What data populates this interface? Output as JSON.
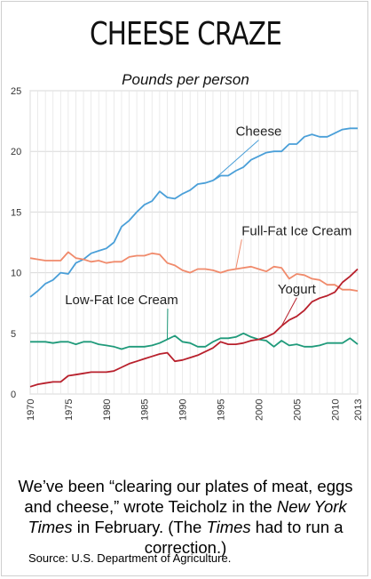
{
  "title": "CHEESE CRAZE",
  "subtitle": "Pounds per person",
  "caption": {
    "p1": "We’ve been “clearing our plates of meat, eggs and cheese,” wrote Teicholz in the ",
    "p2": "New York Times",
    "p3": " in February. (The ",
    "p4": "Times",
    "p5": " had to run a correction.)"
  },
  "source": "Source: U.S. Department of Agriculture.",
  "chart_data": {
    "type": "line",
    "xlim": [
      1970,
      2013
    ],
    "ylim": [
      0,
      25
    ],
    "yticks": [
      0,
      5,
      10,
      15,
      20,
      25
    ],
    "xticks": [
      1970,
      1975,
      1980,
      1985,
      1990,
      1995,
      2000,
      2005,
      2010,
      2013
    ],
    "grid": true,
    "x": [
      1970,
      1971,
      1972,
      1973,
      1974,
      1975,
      1976,
      1977,
      1978,
      1979,
      1980,
      1981,
      1982,
      1983,
      1984,
      1985,
      1986,
      1987,
      1988,
      1989,
      1990,
      1991,
      1992,
      1993,
      1994,
      1995,
      1996,
      1997,
      1998,
      1999,
      2000,
      2001,
      2002,
      2003,
      2004,
      2005,
      2006,
      2007,
      2008,
      2009,
      2010,
      2011,
      2012,
      2013
    ],
    "series": [
      {
        "name": "Cheese",
        "color": "#4a9fd8",
        "values": [
          8.0,
          8.5,
          9.1,
          9.4,
          10.0,
          9.9,
          10.8,
          11.1,
          11.6,
          11.8,
          12.0,
          12.5,
          13.8,
          14.3,
          15.0,
          15.6,
          15.9,
          16.7,
          16.2,
          16.1,
          16.5,
          16.8,
          17.3,
          17.4,
          17.6,
          18.0,
          18.0,
          18.4,
          18.7,
          19.3,
          19.6,
          19.9,
          20.0,
          20.0,
          20.6,
          20.6,
          21.2,
          21.4,
          21.2,
          21.2,
          21.5,
          21.8,
          21.9,
          21.9
        ],
        "label_pos": [
          2000,
          21.3
        ]
      },
      {
        "name": "Full-Fat Ice Cream",
        "color": "#f08a6b",
        "values": [
          11.2,
          11.1,
          11.0,
          11.0,
          11.0,
          11.7,
          11.2,
          11.1,
          10.9,
          11.0,
          10.8,
          10.9,
          10.9,
          11.3,
          11.4,
          11.4,
          11.6,
          11.5,
          10.8,
          10.6,
          10.2,
          10.0,
          10.3,
          10.3,
          10.2,
          10.0,
          10.2,
          10.3,
          10.4,
          10.5,
          10.3,
          10.1,
          10.5,
          10.4,
          9.5,
          9.9,
          9.8,
          9.5,
          9.4,
          9.0,
          9.0,
          8.6,
          8.6,
          8.5
        ],
        "label_pos": [
          2005,
          13.1
        ]
      },
      {
        "name": "Low-Fat Ice Cream",
        "color": "#1f9a7a",
        "values": [
          4.3,
          4.3,
          4.3,
          4.2,
          4.3,
          4.3,
          4.1,
          4.3,
          4.3,
          4.1,
          4.0,
          3.9,
          3.7,
          3.9,
          3.9,
          3.9,
          4.0,
          4.2,
          4.5,
          4.8,
          4.3,
          4.2,
          3.9,
          3.9,
          4.3,
          4.6,
          4.6,
          4.7,
          5.0,
          4.7,
          4.5,
          4.4,
          3.9,
          4.4,
          4.0,
          4.1,
          3.9,
          3.9,
          4.0,
          4.2,
          4.2,
          4.2,
          4.6,
          4.1
        ],
        "label_pos": [
          1982,
          7.4
        ]
      },
      {
        "name": "Yogurt",
        "color": "#b8202c",
        "values": [
          0.6,
          0.8,
          0.9,
          1.0,
          1.0,
          1.5,
          1.6,
          1.7,
          1.8,
          1.8,
          1.8,
          1.9,
          2.2,
          2.5,
          2.7,
          2.9,
          3.1,
          3.3,
          3.4,
          2.7,
          2.8,
          3.0,
          3.2,
          3.5,
          3.8,
          4.3,
          4.1,
          4.1,
          4.2,
          4.4,
          4.5,
          4.7,
          5.0,
          5.6,
          6.1,
          6.4,
          6.9,
          7.6,
          7.9,
          8.1,
          8.4,
          9.2,
          9.7,
          10.3
        ],
        "label_pos": [
          2005,
          8.3
        ]
      }
    ]
  }
}
